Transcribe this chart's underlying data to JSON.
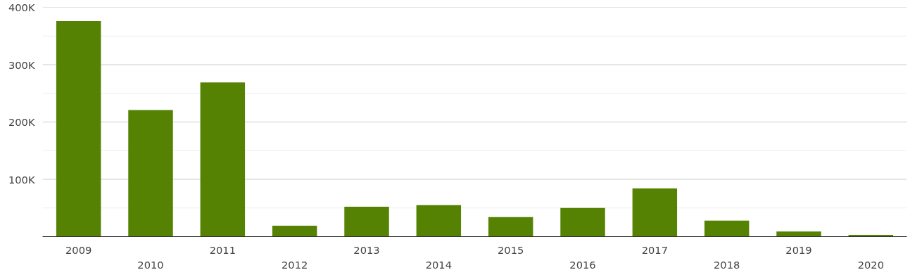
{
  "chart_data": {
    "type": "bar",
    "categories": [
      "2009",
      "2010",
      "2011",
      "2012",
      "2013",
      "2014",
      "2015",
      "2016",
      "2017",
      "2018",
      "2019",
      "2020"
    ],
    "values": [
      376000,
      221000,
      269000,
      19000,
      52000,
      55000,
      34000,
      50000,
      84000,
      28000,
      9000,
      3000
    ],
    "color": "#558203",
    "ylim": [
      0,
      400000
    ],
    "yticks": [
      {
        "value": 0,
        "label": null
      },
      {
        "value": 50000,
        "label": null
      },
      {
        "value": 100000,
        "label": "100K"
      },
      {
        "value": 150000,
        "label": null
      },
      {
        "value": 200000,
        "label": "200K"
      },
      {
        "value": 250000,
        "label": null
      },
      {
        "value": 300000,
        "label": "300K"
      },
      {
        "value": 350000,
        "label": null
      },
      {
        "value": 400000,
        "label": "400K"
      }
    ],
    "grid": "y"
  }
}
